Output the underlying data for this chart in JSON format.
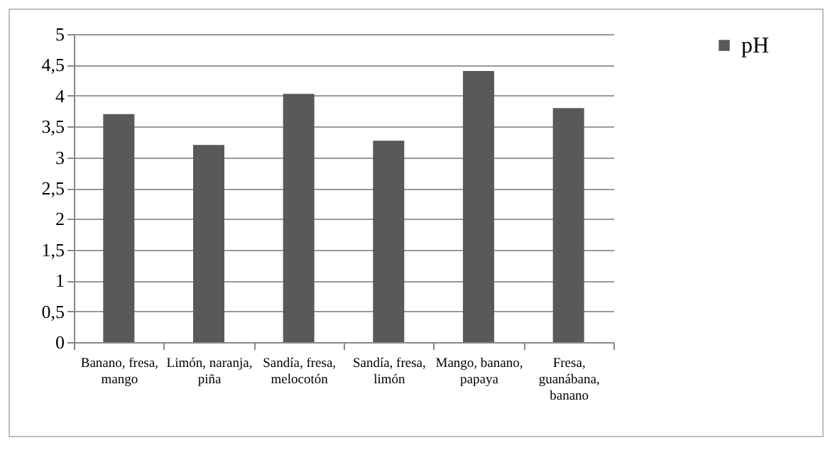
{
  "chart_data": {
    "type": "bar",
    "categories": [
      "Banano, fresa, mango",
      "Limón, naranja, piña",
      "Sandía, fresa, melocotón",
      "Sandía, fresa, limón",
      "Mango, banano, papaya",
      "Fresa, guanábana, banano"
    ],
    "series": [
      {
        "name": "pH",
        "color": "#595959",
        "values": [
          3.7,
          3.2,
          4.03,
          3.27,
          4.4,
          3.8
        ]
      }
    ],
    "ylim": [
      0,
      5
    ],
    "yticks": [
      0,
      {
        "value": 0.5,
        "label": "0,5"
      },
      1,
      {
        "value": 1.5,
        "label": "1,5"
      },
      2,
      {
        "value": 2.5,
        "label": "2,5"
      },
      3,
      {
        "value": 3.5,
        "label": "3,5"
      },
      4,
      {
        "value": 4.5,
        "label": "4,5"
      },
      5
    ],
    "grid": "y",
    "legend": "right"
  }
}
